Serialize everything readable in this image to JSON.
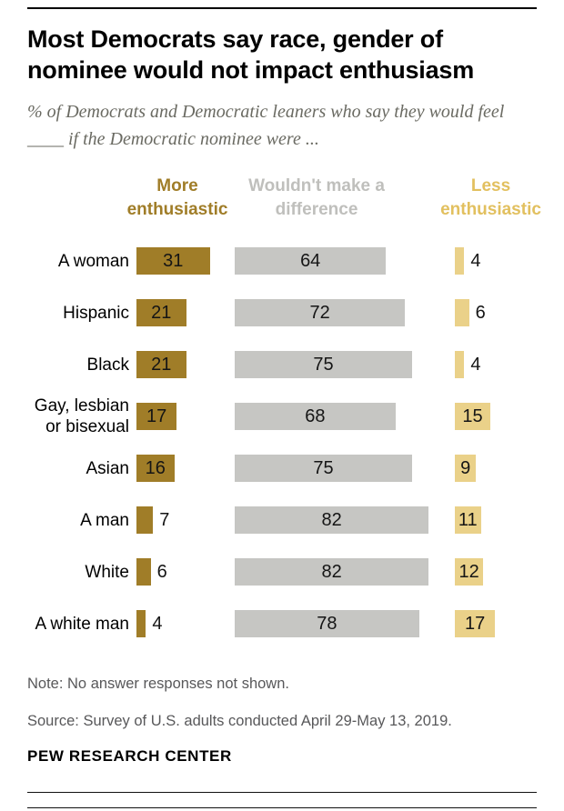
{
  "header": {
    "title": "Most Democrats say race, gender of nominee would not impact enthusiasm",
    "subtitle": "% of Democrats and Democratic leaners who say they would feel ____ if the Democratic nominee were ..."
  },
  "chart_data": {
    "type": "bar",
    "orientation": "horizontal",
    "unit": "%",
    "xlim": [
      0,
      100
    ],
    "legend_position": "top",
    "value_labels": true,
    "categories": [
      "A woman",
      "Hispanic",
      "Black",
      "Gay, lesbian or bisexual",
      "Asian",
      "A man",
      "White",
      "A white man"
    ],
    "series": [
      {
        "name": "More enthusiastic",
        "color": "#a07d28",
        "label_color": "#a07d28",
        "values": [
          31,
          21,
          21,
          17,
          16,
          7,
          6,
          4
        ]
      },
      {
        "name": "Wouldn't make a difference",
        "color": "#c6c6c3",
        "label_color": "#bfbfbc",
        "values": [
          64,
          72,
          75,
          68,
          75,
          82,
          82,
          78
        ]
      },
      {
        "name": "Less enthusiastic",
        "color": "#ead189",
        "label_color": "#e2c05f",
        "values": [
          4,
          6,
          4,
          15,
          9,
          11,
          12,
          17
        ]
      }
    ]
  },
  "footer": {
    "note": "Note: No answer responses not shown.",
    "source": "Source: Survey of U.S. adults conducted April 29-May 13, 2019.",
    "brand": "PEW RESEARCH CENTER"
  }
}
